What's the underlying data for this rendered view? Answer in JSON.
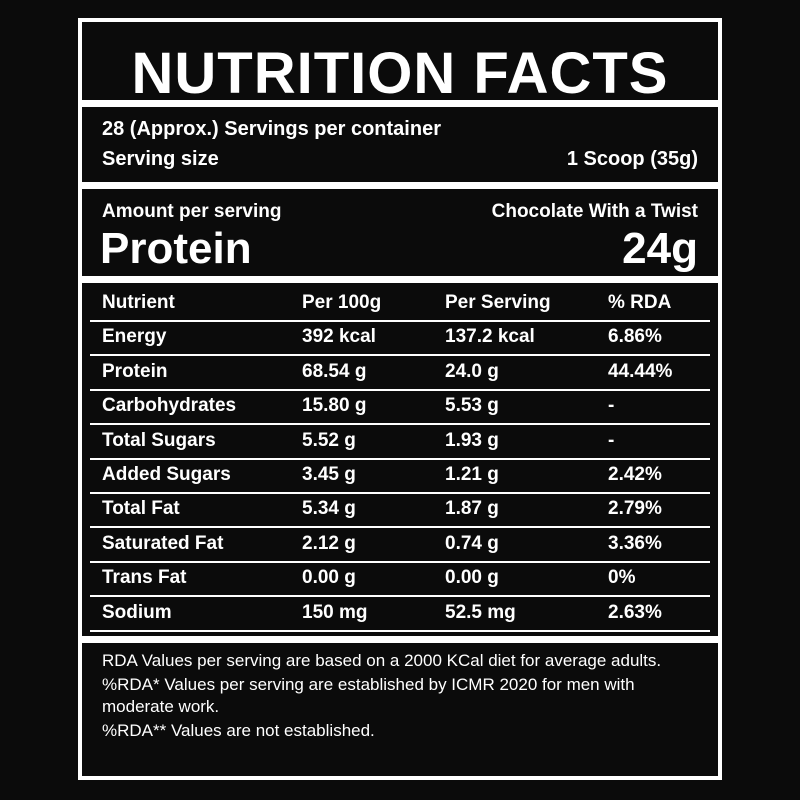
{
  "header": {
    "title": "NUTRITION FACTS"
  },
  "servings": {
    "per_container": "28 (Approx.) Servings per container",
    "size_label": "Serving size",
    "size_value": "1 Scoop (35g)"
  },
  "amount": {
    "label": "Amount per serving",
    "flavor": "Chocolate With a Twist",
    "nutrient": "Protein",
    "value": "24g"
  },
  "table": {
    "headers": [
      "Nutrient",
      "Per 100g",
      "Per Serving",
      "% RDA"
    ],
    "rows": [
      [
        "Energy",
        "392 kcal",
        "137.2 kcal",
        "6.86%"
      ],
      [
        "Protein",
        "68.54 g",
        "24.0 g",
        "44.44%"
      ],
      [
        "Carbohydrates",
        "15.80 g",
        "5.53 g",
        "-"
      ],
      [
        "Total Sugars",
        "5.52 g",
        "1.93 g",
        "-"
      ],
      [
        "Added Sugars",
        "3.45 g",
        "1.21 g",
        "2.42%"
      ],
      [
        "Total Fat",
        "5.34 g",
        "1.87 g",
        "2.79%"
      ],
      [
        "Saturated Fat",
        "2.12 g",
        "0.74 g",
        "3.36%"
      ],
      [
        "Trans Fat",
        "0.00 g",
        "0.00 g",
        "0%"
      ],
      [
        "Sodium",
        "150 mg",
        "52.5 mg",
        "2.63%"
      ]
    ]
  },
  "notes": [
    "RDA Values per serving are based on a 2000 KCal diet for average adults.",
    "%RDA* Values per serving are established by ICMR 2020 for men with moderate work.",
    "%RDA** Values are not established."
  ]
}
